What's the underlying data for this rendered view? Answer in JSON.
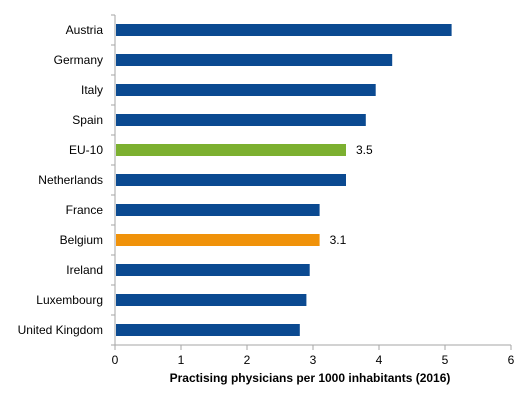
{
  "chart_data": {
    "type": "bar",
    "orientation": "horizontal",
    "categories": [
      "Austria",
      "Germany",
      "Italy",
      "Spain",
      "EU-10",
      "Netherlands",
      "France",
      "Belgium",
      "Ireland",
      "Luxembourg",
      "United Kingdom"
    ],
    "values": [
      5.1,
      4.2,
      3.95,
      3.8,
      3.5,
      3.5,
      3.1,
      3.1,
      2.95,
      2.9,
      2.8
    ],
    "bar_colors": [
      "#0b4a91",
      "#0b4a91",
      "#0b4a91",
      "#0b4a91",
      "#7cb030",
      "#0b4a91",
      "#0b4a91",
      "#f0920a",
      "#0b4a91",
      "#0b4a91",
      "#0b4a91"
    ],
    "data_labels": [
      "",
      "",
      "",
      "",
      "3.5",
      "",
      "",
      "3.1",
      "",
      "",
      ""
    ],
    "xlabel": "Practising physicians  per 1000  inhabitants (2016)",
    "ylabel": "",
    "xlim": [
      0,
      6
    ],
    "xticks": [
      "0",
      "1",
      "2",
      "3",
      "4",
      "5",
      "6"
    ],
    "grid": false,
    "legend": "none",
    "colors": {
      "default": "#0b4a91",
      "eu_average": "#7cb030",
      "highlight": "#f0920a",
      "axis": "#a6a6a6"
    }
  }
}
